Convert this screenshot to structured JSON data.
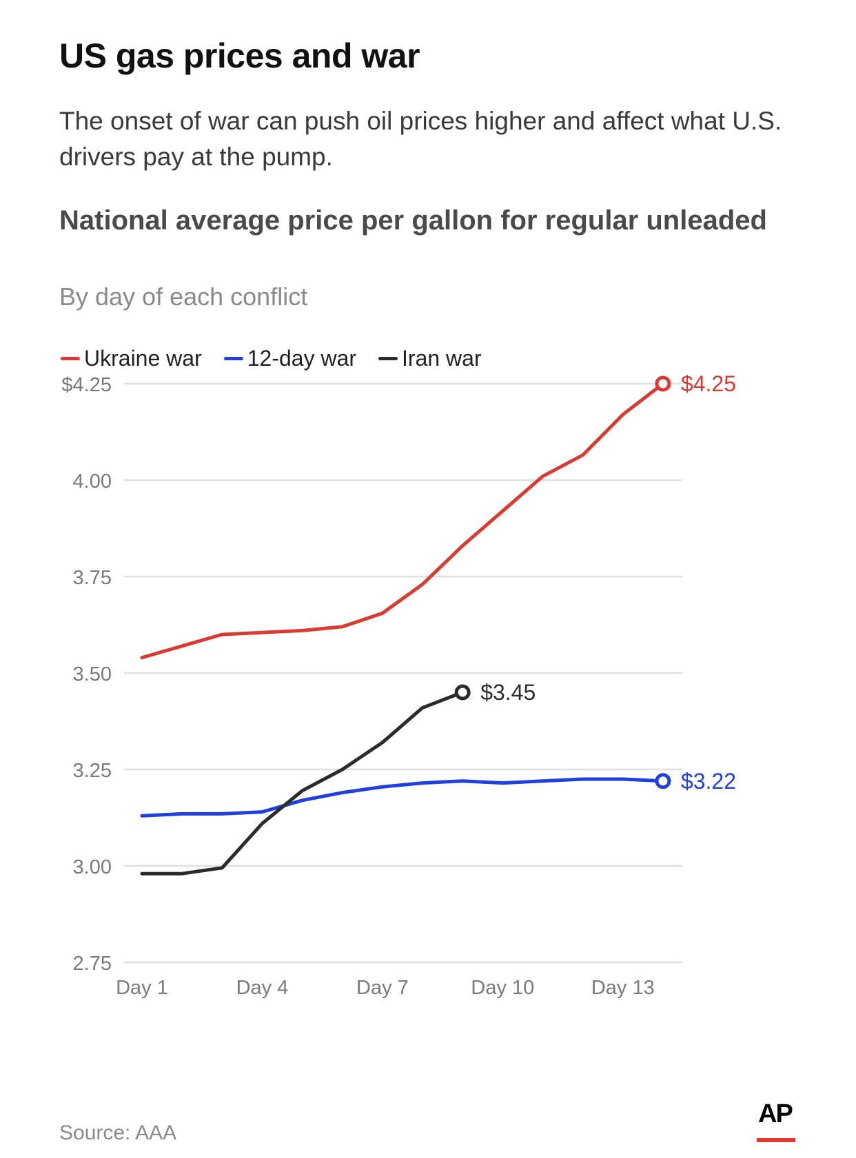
{
  "header": {
    "title": "US gas prices and war",
    "subtitle": "The onset of war can push oil prices higher and affect what U.S. drivers pay at the pump."
  },
  "chart_data": {
    "type": "line",
    "title": "National average price per gallon for regular unleaded",
    "subtitle": "By day of each conflict",
    "xlabel": "",
    "ylabel": "",
    "x": [
      1,
      2,
      3,
      4,
      5,
      6,
      7,
      8,
      9,
      10,
      11,
      12,
      13,
      14
    ],
    "x_tick_values": [
      1,
      4,
      7,
      10,
      13
    ],
    "x_tick_labels": [
      "Day 1",
      "Day 4",
      "Day 7",
      "Day 10",
      "Day 13"
    ],
    "xlim": [
      1,
      14
    ],
    "ylim": [
      2.75,
      4.25
    ],
    "y_ticks": [
      2.75,
      3.0,
      3.25,
      3.5,
      3.75,
      4.0,
      4.25
    ],
    "y_tick_labels": [
      "2.75",
      "3.00",
      "3.25",
      "3.50",
      "3.75",
      "4.00",
      "$4.25"
    ],
    "grid": true,
    "legend_position": "top-left",
    "series": [
      {
        "name": "Ukraine war",
        "color": "#d93a31",
        "values": [
          3.54,
          3.57,
          3.6,
          3.605,
          3.61,
          3.62,
          3.655,
          3.73,
          3.83,
          3.92,
          4.01,
          4.065,
          4.17,
          4.25
        ],
        "end_label": "$4.25"
      },
      {
        "name": "12-day war",
        "color": "#1f3fe0",
        "values": [
          3.13,
          3.135,
          3.135,
          3.14,
          3.17,
          3.19,
          3.205,
          3.215,
          3.22,
          3.215,
          3.22,
          3.225,
          3.225,
          3.22
        ],
        "end_label": "$3.22"
      },
      {
        "name": "Iran war",
        "color": "#2b2b2b",
        "values": [
          2.98,
          2.98,
          2.995,
          3.11,
          3.195,
          3.25,
          3.32,
          3.41,
          3.45
        ],
        "end_label": "$3.45"
      }
    ]
  },
  "footer": {
    "source": "Source: AAA",
    "logo": "AP"
  }
}
